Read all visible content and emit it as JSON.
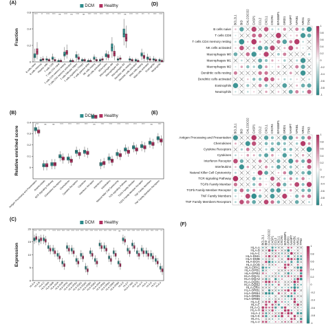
{
  "chart_data": [
    {
      "panel": "(A)",
      "type": "box",
      "ylabel": "Fraction",
      "ylim": [
        0,
        0.6
      ],
      "yticks": [
        "0",
        "0.2",
        "0.4",
        "0.6"
      ],
      "legend": [
        "DCM",
        "Healthy"
      ],
      "colors": {
        "DCM": "#2e8b8b",
        "Healthy": "#b03060"
      },
      "categories": [
        "B cells naive",
        "B cells memory",
        "Plasma cells",
        "T cells CD8",
        "T cells CD4 naive",
        "T cells CD4 memory resting",
        "T cells CD4 memory activated",
        "T cells follicular helper",
        "T cells regulatory (Tregs)",
        "T cells gamma delta",
        "NK cells resting",
        "NK cells activated",
        "Monocytes",
        "Macrophages M0",
        "Macrophages M1",
        "Macrophages M2",
        "Dendritic cells resting",
        "Dendritic cells activated",
        "Mast cells resting",
        "Mast cells activated",
        "Eosinophils",
        "Neutrophils"
      ],
      "significance": [
        "****",
        "**",
        "****",
        "****",
        "ns",
        "****",
        "ns",
        "****",
        "ns",
        "****",
        "****",
        "****",
        "****",
        "**",
        "****",
        "ns",
        "****",
        "***",
        "***",
        "**",
        "****",
        "****"
      ],
      "series": [
        {
          "name": "DCM",
          "median": [
            0.07,
            0.02,
            0.03,
            0.04,
            0.01,
            0.09,
            0.01,
            0.07,
            0.02,
            0.01,
            0.04,
            0.02,
            0.08,
            0.17,
            0.03,
            0.34,
            0.03,
            0.02,
            0.09,
            0.05,
            0.03,
            0.02
          ],
          "q1": [
            0.05,
            0.01,
            0.02,
            0.03,
            0.0,
            0.07,
            0.0,
            0.05,
            0.01,
            0.0,
            0.03,
            0.01,
            0.06,
            0.13,
            0.02,
            0.3,
            0.02,
            0.01,
            0.07,
            0.03,
            0.02,
            0.01
          ],
          "q3": [
            0.1,
            0.03,
            0.04,
            0.06,
            0.02,
            0.12,
            0.02,
            0.09,
            0.03,
            0.02,
            0.06,
            0.03,
            0.1,
            0.22,
            0.04,
            0.4,
            0.04,
            0.03,
            0.11,
            0.06,
            0.04,
            0.03
          ],
          "lo": [
            0.01,
            0.0,
            0.0,
            0.0,
            0.0,
            0.02,
            0.0,
            0.01,
            0.0,
            0.0,
            0.0,
            0.0,
            0.02,
            0.05,
            0.0,
            0.2,
            0.0,
            0.0,
            0.02,
            0.0,
            0.0,
            0.0
          ],
          "hi": [
            0.16,
            0.06,
            0.07,
            0.1,
            0.04,
            0.18,
            0.04,
            0.13,
            0.05,
            0.04,
            0.09,
            0.05,
            0.14,
            0.3,
            0.07,
            0.52,
            0.07,
            0.05,
            0.16,
            0.1,
            0.07,
            0.05
          ]
        },
        {
          "name": "Healthy",
          "median": [
            0.12,
            0.03,
            0.02,
            0.02,
            0.01,
            0.11,
            0.01,
            0.04,
            0.02,
            0.01,
            0.02,
            0.03,
            0.07,
            0.1,
            0.04,
            0.29,
            0.02,
            0.01,
            0.06,
            0.03,
            0.02,
            0.01
          ],
          "q1": [
            0.09,
            0.02,
            0.01,
            0.01,
            0.0,
            0.09,
            0.0,
            0.03,
            0.01,
            0.0,
            0.01,
            0.02,
            0.05,
            0.07,
            0.03,
            0.25,
            0.01,
            0.0,
            0.04,
            0.02,
            0.01,
            0.0
          ],
          "q3": [
            0.16,
            0.04,
            0.03,
            0.03,
            0.02,
            0.14,
            0.02,
            0.06,
            0.03,
            0.02,
            0.03,
            0.04,
            0.09,
            0.13,
            0.05,
            0.34,
            0.03,
            0.02,
            0.08,
            0.04,
            0.03,
            0.02
          ],
          "lo": [
            0.03,
            0.0,
            0.0,
            0.0,
            0.0,
            0.04,
            0.0,
            0.0,
            0.0,
            0.0,
            0.0,
            0.0,
            0.02,
            0.02,
            0.01,
            0.17,
            0.0,
            0.0,
            0.01,
            0.0,
            0.0,
            0.0
          ],
          "hi": [
            0.24,
            0.07,
            0.05,
            0.06,
            0.04,
            0.21,
            0.04,
            0.1,
            0.05,
            0.04,
            0.06,
            0.07,
            0.13,
            0.2,
            0.08,
            0.44,
            0.05,
            0.04,
            0.12,
            0.07,
            0.05,
            0.04
          ]
        }
      ]
    },
    {
      "panel": "(B)",
      "type": "box",
      "ylabel": "Relative enriched score",
      "ylim": [
        -0.1,
        0.4
      ],
      "yticks": [
        "0",
        "0.1",
        "0.2",
        "0.3",
        "0.4"
      ],
      "legend": [
        "DCM",
        "Healthy"
      ],
      "categories": [
        "Antigen Processing and Presentation",
        "Antimicrobials",
        "BCR Signaling Pathway",
        "Chemokine Receptors",
        "Chemokines",
        "Cytokine Receptors",
        "Cytokines",
        "Interferon Receptor",
        "Interferons",
        "Interleukins",
        "Natural Killer Cell Cytotoxicity",
        "TCR signaling Pathway",
        "TGFb Family Member",
        "TGFb Family Member Receptor",
        "TNF Family Members",
        "TNF Family Members Receptors"
      ],
      "significance": [
        "****",
        "ns",
        "ns",
        "****",
        "****",
        "****",
        "****",
        "ns",
        "****",
        "****",
        "****",
        "****",
        "****",
        "****",
        "ns",
        "****"
      ],
      "series": [
        {
          "name": "DCM",
          "median": [
            0.34,
            0.02,
            0.03,
            0.1,
            0.08,
            0.14,
            0.14,
            0.45,
            0.03,
            0.08,
            0.12,
            0.16,
            0.18,
            0.19,
            0.22,
            0.26
          ]
        },
        {
          "name": "Healthy",
          "median": [
            0.32,
            0.02,
            0.03,
            0.08,
            0.06,
            0.12,
            0.13,
            0.45,
            0.04,
            0.06,
            0.11,
            0.14,
            0.16,
            0.18,
            0.21,
            0.24
          ]
        }
      ]
    },
    {
      "panel": "(C)",
      "type": "box",
      "ylabel": "Expression",
      "ylim": [
        0,
        20
      ],
      "yticks": [
        "0",
        "5",
        "10",
        "15",
        "20"
      ],
      "legend": [
        "DCM",
        "Healthy"
      ],
      "categories": [
        "HLA-A",
        "HLA-B",
        "HLA-C",
        "HLA-DMA",
        "HLA-DMB",
        "HLA-DOA",
        "HLA-DOB",
        "HLA-DPA1",
        "HLA-DPB1",
        "HLA-DPB2",
        "HLA-DQA1",
        "HLA-DQA2",
        "HLA-DQB1",
        "HLA-DQB2",
        "HLA-DRA",
        "HLA-DRB1",
        "HLA-DRB4",
        "HLA-DRB5",
        "HLA-DRB6",
        "HLA-E",
        "HLA-F",
        "HLA-F-AS1",
        "HLA-G",
        "HLA-H",
        "HLA-J",
        "HLA-K",
        "HLA-L",
        "HLA-V"
      ],
      "significance": [
        "****",
        "****",
        "****",
        "*",
        "****",
        "****",
        "****",
        "****",
        "****",
        "****",
        "****",
        "****",
        "****",
        "****",
        "****",
        "****",
        "****",
        "****",
        "ns",
        "****",
        "****",
        "****",
        "****",
        "****",
        "****",
        "****",
        "****",
        "**"
      ],
      "series": [
        {
          "name": "DCM",
          "median": [
            16,
            15.5,
            16,
            13,
            12,
            10,
            7,
            13,
            12,
            8,
            10,
            5,
            11,
            8,
            14,
            13,
            9,
            11,
            7,
            16,
            12,
            14,
            11,
            12,
            11,
            10,
            8,
            5
          ]
        },
        {
          "name": "Healthy",
          "median": [
            16.5,
            16,
            15.5,
            12,
            11,
            9,
            6,
            12,
            11,
            7,
            9,
            4,
            10,
            7,
            13,
            12,
            8,
            10,
            6,
            15.5,
            11,
            13,
            10,
            11,
            10,
            9,
            7,
            4
          ]
        }
      ]
    },
    {
      "panel": "(D)",
      "type": "heatmap",
      "columns": [
        "BCL2L1",
        "BID",
        "CALCOCO2",
        "CASP1",
        "CCL2",
        "CXCL1",
        "CXCR4",
        "EIF4EBP1",
        "GRID1",
        "NAMPT",
        "NFKB1",
        "NRG1",
        "TP63"
      ],
      "rows": [
        "B cells naive",
        "T cells CD8",
        "T cells CD4 memory resting",
        "NK cells activated",
        "Macrophages M0",
        "Macrophages M1",
        "Macrophages M2",
        "Dendritic cells resting",
        "Dendritic cells activated",
        "Eosinophils",
        "Neutrophils"
      ],
      "scale": [
        "1",
        "0.8",
        "0.6",
        "0.4",
        "0.2",
        "0",
        "-0.2",
        "-0.4",
        "-0.6",
        "-0.8",
        "-1"
      ]
    },
    {
      "panel": "(E)",
      "type": "heatmap",
      "columns": [
        "BCL2L1",
        "BID",
        "CALCOCO2",
        "CASP1",
        "CCL2",
        "CXCL1",
        "CXCR4",
        "EIF4EBP1",
        "GRID1",
        "NAMPT",
        "NFKB1",
        "NRG1",
        "TP63"
      ],
      "rows": [
        "Antigen Processing and Presentation",
        "Chemokines",
        "Cytokine Receptors",
        "Cytokines",
        "Interferon Receptor",
        "Interleukins",
        "Natural Killer Cell Cytotoxicity",
        "TCR signaling Pathway",
        "TGFb Family Member",
        "TGFb Family Member Receptor",
        "TNF Family Members",
        "TNF Family Members Receptors"
      ],
      "scale": [
        "1",
        "0.8",
        "0.6",
        "0.4",
        "0.2",
        "0",
        "-0.2",
        "-0.4",
        "-0.6",
        "-0.8",
        "-1"
      ]
    },
    {
      "panel": "(F)",
      "type": "heatmap",
      "columns": [
        "BCL2L1",
        "BID",
        "CALCOCO2",
        "CASP1",
        "CCL2",
        "CXCL1",
        "CXCR4",
        "EIF4EBP1",
        "GRID1",
        "NAMPT",
        "NFKB1",
        "NRG1",
        "TP63"
      ],
      "rows": [
        "HLA-A",
        "HLA-B",
        "HLA-C",
        "HLA-DMA",
        "HLA-DMB",
        "HLA-DOA",
        "HLA-DOB",
        "HLA-DPA1",
        "HLA-DPB1",
        "HLA-DPB2",
        "HLA-DQA1",
        "HLA-DQA2",
        "HLA-DQB1",
        "HLA-DQB2",
        "HLA-DRA",
        "HLA-DRB1",
        "HLA-DRB4",
        "HLA-DRB5",
        "HLA-DRB6",
        "HLA-E",
        "HLA-F",
        "HLA-G",
        "HLA-H",
        "HLA-J",
        "HLA-K",
        "HLA-L",
        "HLA-V"
      ],
      "scale": [
        "1",
        "0.8",
        "0.6",
        "0.4",
        "0.2",
        "0",
        "-0.2",
        "-0.4",
        "-0.6",
        "-0.8",
        "-1"
      ]
    }
  ]
}
